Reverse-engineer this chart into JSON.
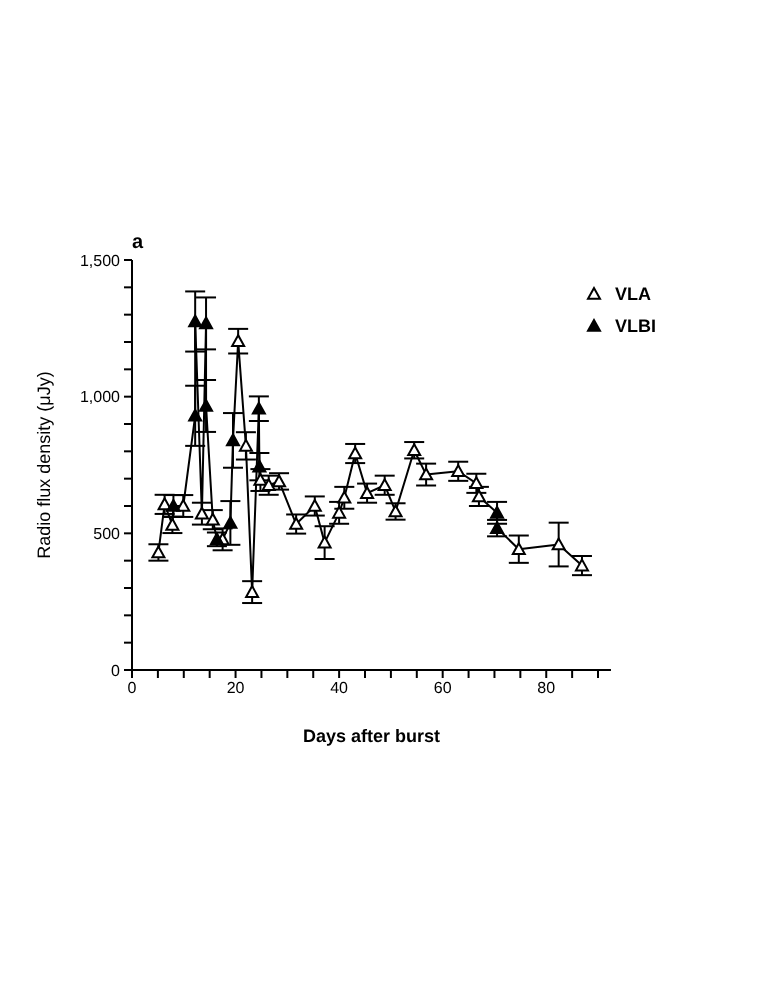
{
  "chart_data": {
    "type": "scatter",
    "xlabel": "Days after burst",
    "ylabel": "Radio flux density (μJy)",
    "annotations": [
      "a"
    ],
    "xlim": [
      0,
      92.5
    ],
    "xticks": [
      0,
      {
        "value": 5,
        "label": null
      },
      {
        "value": 10,
        "label": null
      },
      {
        "value": 15,
        "label": null
      },
      20,
      {
        "value": 25,
        "label": null
      },
      {
        "value": 30,
        "label": null
      },
      {
        "value": 35,
        "label": null
      },
      40,
      {
        "value": 45,
        "label": null
      },
      {
        "value": 50,
        "label": null
      },
      {
        "value": 55,
        "label": null
      },
      60,
      {
        "value": 65,
        "label": null
      },
      {
        "value": 70,
        "label": null
      },
      {
        "value": 75,
        "label": null
      },
      80,
      {
        "value": 85,
        "label": null
      },
      {
        "value": 90,
        "label": null
      }
    ],
    "ylim": [
      0,
      1500
    ],
    "yticks": [
      0,
      {
        "value": 100,
        "label": null
      },
      {
        "value": 200,
        "label": null
      },
      {
        "value": 300,
        "label": null
      },
      {
        "value": 400,
        "label": null
      },
      500,
      {
        "value": 600,
        "label": null
      },
      {
        "value": 700,
        "label": null
      },
      {
        "value": 800,
        "label": null
      },
      {
        "value": 900,
        "label": null
      },
      {
        "value": 1000,
        "label": "1,000"
      },
      {
        "value": 1100,
        "label": null
      },
      {
        "value": 1200,
        "label": null
      },
      {
        "value": 1300,
        "label": null
      },
      {
        "value": 1400,
        "label": null
      },
      {
        "value": 1500,
        "label": "1,500"
      }
    ],
    "legend": "top right",
    "marker": "triangle",
    "series": [
      {
        "type": "line",
        "color": "#000000",
        "marker": "none",
        "line_style": "solid",
        "x": [
          5.1,
          6.3,
          7.8,
          8,
          9.9,
          12.2,
          12.2,
          13.5,
          14.3,
          14.3,
          15.6,
          16.4,
          17.5,
          19,
          19.5,
          20.5,
          22,
          23.2,
          24.5,
          24.6,
          24.8,
          26.4,
          28.4,
          31.7,
          35.3,
          37.2,
          40,
          41,
          43.1,
          45.4,
          48.8,
          50.9,
          54.5,
          56.8,
          63,
          66.5,
          67,
          70.5,
          70.5,
          74.7,
          82.4,
          86.9
        ],
        "values": [
          430,
          606,
          531,
          600,
          600,
          930,
          1275,
          572,
          1268,
          966,
          550,
          478,
          478,
          538,
          840,
          1203,
          820,
          285,
          956,
          744,
          695,
          676,
          690,
          534,
          600,
          466,
          575,
          630,
          792,
          647,
          676,
          580,
          804,
          715,
          727,
          683,
          635,
          575,
          519,
          442,
          459,
          382
        ]
      },
      {
        "name": "VLA",
        "color": "#000000",
        "x": [
          5.1,
          6.3,
          7.8,
          9.9,
          13.5,
          15.6,
          17.5,
          20.5,
          22,
          23.2,
          24.8,
          26.4,
          28.4,
          31.7,
          35.3,
          37.2,
          40,
          41,
          43.1,
          45.4,
          48.8,
          50.9,
          54.5,
          56.8,
          63,
          66.5,
          67,
          74.7,
          82.4,
          86.9
        ],
        "values": [
          430,
          606,
          531,
          600,
          572,
          550,
          478,
          1203,
          820,
          285,
          695,
          676,
          690,
          534,
          600,
          466,
          575,
          630,
          792,
          647,
          676,
          580,
          804,
          715,
          727,
          683,
          635,
          442,
          459,
          382
        ],
        "errors": [
          30,
          35,
          30,
          40,
          40,
          35,
          40,
          45,
          50,
          40,
          40,
          35,
          30,
          35,
          35,
          60,
          40,
          40,
          35,
          35,
          35,
          30,
          30,
          40,
          35,
          35,
          35,
          50,
          80,
          35
        ]
      },
      {
        "name": "VLBI",
        "color": "#000000",
        "x": [
          8,
          12.2,
          12.2,
          14.3,
          14.3,
          16.4,
          19,
          19.5,
          24.5,
          24.6,
          70.5,
          70.5
        ],
        "values": [
          600,
          1275,
          930,
          1268,
          966,
          478,
          538,
          840,
          956,
          744,
          575,
          519
        ],
        "errors": [
          40,
          110,
          110,
          95,
          95,
          25,
          80,
          100,
          45,
          50,
          40,
          30
        ]
      }
    ]
  }
}
